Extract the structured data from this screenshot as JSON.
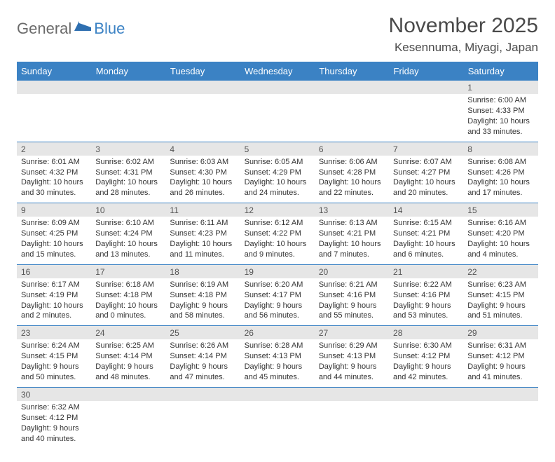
{
  "brand": {
    "name1": "General",
    "name2": "Blue",
    "icon_color": "#2e6fb0"
  },
  "title": "November 2025",
  "location": "Kesennuma, Miyagi, Japan",
  "colors": {
    "header_bg": "#3b82c4",
    "header_text": "#ffffff",
    "daynum_bg": "#e6e6e6",
    "row_divider": "#3b82c4",
    "body_text": "#333333"
  },
  "weekdays": [
    "Sunday",
    "Monday",
    "Tuesday",
    "Wednesday",
    "Thursday",
    "Friday",
    "Saturday"
  ],
  "weeks": [
    {
      "nums": [
        "",
        "",
        "",
        "",
        "",
        "",
        "1"
      ],
      "lines": [
        [
          "",
          "",
          "",
          ""
        ],
        [
          "",
          "",
          "",
          ""
        ],
        [
          "",
          "",
          "",
          ""
        ],
        [
          "",
          "",
          "",
          ""
        ],
        [
          "",
          "",
          "",
          ""
        ],
        [
          "",
          "",
          "",
          ""
        ],
        [
          "Sunrise: 6:00 AM",
          "Sunset: 4:33 PM",
          "Daylight: 10 hours",
          "and 33 minutes."
        ]
      ]
    },
    {
      "nums": [
        "2",
        "3",
        "4",
        "5",
        "6",
        "7",
        "8"
      ],
      "lines": [
        [
          "Sunrise: 6:01 AM",
          "Sunset: 4:32 PM",
          "Daylight: 10 hours",
          "and 30 minutes."
        ],
        [
          "Sunrise: 6:02 AM",
          "Sunset: 4:31 PM",
          "Daylight: 10 hours",
          "and 28 minutes."
        ],
        [
          "Sunrise: 6:03 AM",
          "Sunset: 4:30 PM",
          "Daylight: 10 hours",
          "and 26 minutes."
        ],
        [
          "Sunrise: 6:05 AM",
          "Sunset: 4:29 PM",
          "Daylight: 10 hours",
          "and 24 minutes."
        ],
        [
          "Sunrise: 6:06 AM",
          "Sunset: 4:28 PM",
          "Daylight: 10 hours",
          "and 22 minutes."
        ],
        [
          "Sunrise: 6:07 AM",
          "Sunset: 4:27 PM",
          "Daylight: 10 hours",
          "and 20 minutes."
        ],
        [
          "Sunrise: 6:08 AM",
          "Sunset: 4:26 PM",
          "Daylight: 10 hours",
          "and 17 minutes."
        ]
      ]
    },
    {
      "nums": [
        "9",
        "10",
        "11",
        "12",
        "13",
        "14",
        "15"
      ],
      "lines": [
        [
          "Sunrise: 6:09 AM",
          "Sunset: 4:25 PM",
          "Daylight: 10 hours",
          "and 15 minutes."
        ],
        [
          "Sunrise: 6:10 AM",
          "Sunset: 4:24 PM",
          "Daylight: 10 hours",
          "and 13 minutes."
        ],
        [
          "Sunrise: 6:11 AM",
          "Sunset: 4:23 PM",
          "Daylight: 10 hours",
          "and 11 minutes."
        ],
        [
          "Sunrise: 6:12 AM",
          "Sunset: 4:22 PM",
          "Daylight: 10 hours",
          "and 9 minutes."
        ],
        [
          "Sunrise: 6:13 AM",
          "Sunset: 4:21 PM",
          "Daylight: 10 hours",
          "and 7 minutes."
        ],
        [
          "Sunrise: 6:15 AM",
          "Sunset: 4:21 PM",
          "Daylight: 10 hours",
          "and 6 minutes."
        ],
        [
          "Sunrise: 6:16 AM",
          "Sunset: 4:20 PM",
          "Daylight: 10 hours",
          "and 4 minutes."
        ]
      ]
    },
    {
      "nums": [
        "16",
        "17",
        "18",
        "19",
        "20",
        "21",
        "22"
      ],
      "lines": [
        [
          "Sunrise: 6:17 AM",
          "Sunset: 4:19 PM",
          "Daylight: 10 hours",
          "and 2 minutes."
        ],
        [
          "Sunrise: 6:18 AM",
          "Sunset: 4:18 PM",
          "Daylight: 10 hours",
          "and 0 minutes."
        ],
        [
          "Sunrise: 6:19 AM",
          "Sunset: 4:18 PM",
          "Daylight: 9 hours",
          "and 58 minutes."
        ],
        [
          "Sunrise: 6:20 AM",
          "Sunset: 4:17 PM",
          "Daylight: 9 hours",
          "and 56 minutes."
        ],
        [
          "Sunrise: 6:21 AM",
          "Sunset: 4:16 PM",
          "Daylight: 9 hours",
          "and 55 minutes."
        ],
        [
          "Sunrise: 6:22 AM",
          "Sunset: 4:16 PM",
          "Daylight: 9 hours",
          "and 53 minutes."
        ],
        [
          "Sunrise: 6:23 AM",
          "Sunset: 4:15 PM",
          "Daylight: 9 hours",
          "and 51 minutes."
        ]
      ]
    },
    {
      "nums": [
        "23",
        "24",
        "25",
        "26",
        "27",
        "28",
        "29"
      ],
      "lines": [
        [
          "Sunrise: 6:24 AM",
          "Sunset: 4:15 PM",
          "Daylight: 9 hours",
          "and 50 minutes."
        ],
        [
          "Sunrise: 6:25 AM",
          "Sunset: 4:14 PM",
          "Daylight: 9 hours",
          "and 48 minutes."
        ],
        [
          "Sunrise: 6:26 AM",
          "Sunset: 4:14 PM",
          "Daylight: 9 hours",
          "and 47 minutes."
        ],
        [
          "Sunrise: 6:28 AM",
          "Sunset: 4:13 PM",
          "Daylight: 9 hours",
          "and 45 minutes."
        ],
        [
          "Sunrise: 6:29 AM",
          "Sunset: 4:13 PM",
          "Daylight: 9 hours",
          "and 44 minutes."
        ],
        [
          "Sunrise: 6:30 AM",
          "Sunset: 4:12 PM",
          "Daylight: 9 hours",
          "and 42 minutes."
        ],
        [
          "Sunrise: 6:31 AM",
          "Sunset: 4:12 PM",
          "Daylight: 9 hours",
          "and 41 minutes."
        ]
      ]
    },
    {
      "nums": [
        "30",
        "",
        "",
        "",
        "",
        "",
        ""
      ],
      "lines": [
        [
          "Sunrise: 6:32 AM",
          "Sunset: 4:12 PM",
          "Daylight: 9 hours",
          "and 40 minutes."
        ],
        [
          "",
          "",
          "",
          ""
        ],
        [
          "",
          "",
          "",
          ""
        ],
        [
          "",
          "",
          "",
          ""
        ],
        [
          "",
          "",
          "",
          ""
        ],
        [
          "",
          "",
          "",
          ""
        ],
        [
          "",
          "",
          "",
          ""
        ]
      ]
    }
  ]
}
